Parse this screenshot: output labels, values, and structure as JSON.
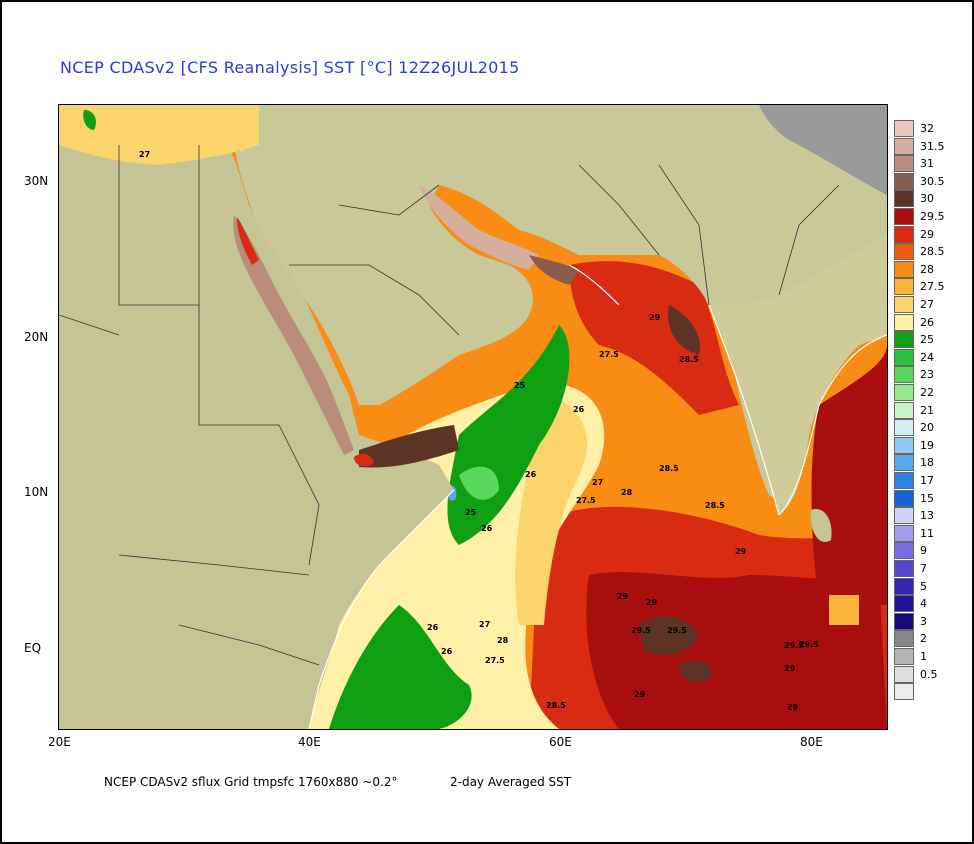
{
  "title": "NCEP CDASv2 [CFS Reanalysis] SST [°C] 12Z26JUL2015",
  "footer": {
    "left": "NCEP CDASv2 sflux Grid tmpsfc 1760x880 ~0.2°",
    "right": "2-day Averaged SST"
  },
  "axes": {
    "x_ticks": [
      "20E",
      "40E",
      "60E",
      "80E"
    ],
    "y_ticks": [
      "30N",
      "20N",
      "10N",
      "EQ"
    ]
  },
  "colorbar": [
    {
      "label": "32",
      "color": "#e8c8bc"
    },
    {
      "label": "31.5",
      "color": "#d6aea0"
    },
    {
      "label": "31",
      "color": "#b98c7c"
    },
    {
      "label": "30.5",
      "color": "#8a5c4c"
    },
    {
      "label": "30",
      "color": "#5c3426"
    },
    {
      "label": "29.5",
      "color": "#a80e0e"
    },
    {
      "label": "29",
      "color": "#d92a12"
    },
    {
      "label": "28.5",
      "color": "#f05a10"
    },
    {
      "label": "28",
      "color": "#f88c14"
    },
    {
      "label": "27.5",
      "color": "#fbb43a"
    },
    {
      "label": "27",
      "color": "#fcd46c"
    },
    {
      "label": "26",
      "color": "#fff0a8"
    },
    {
      "label": "25",
      "color": "#0ea012"
    },
    {
      "label": "24",
      "color": "#2cc23a"
    },
    {
      "label": "23",
      "color": "#5ad85e"
    },
    {
      "label": "22",
      "color": "#96e88c"
    },
    {
      "label": "21",
      "color": "#c8f4c4"
    },
    {
      "label": "20",
      "color": "#cfeefa"
    },
    {
      "label": "19",
      "color": "#90c8f4"
    },
    {
      "label": "18",
      "color": "#5aa8ec"
    },
    {
      "label": "17",
      "color": "#2a84e2"
    },
    {
      "label": "15",
      "color": "#1464d8"
    },
    {
      "label": "13",
      "color": "#d2d2f8"
    },
    {
      "label": "11",
      "color": "#a49af0"
    },
    {
      "label": "9",
      "color": "#7a6ce0"
    },
    {
      "label": "7",
      "color": "#5646cc"
    },
    {
      "label": "5",
      "color": "#3624b4"
    },
    {
      "label": "4",
      "color": "#22129c"
    },
    {
      "label": "3",
      "color": "#14087a"
    },
    {
      "label": "2",
      "color": "#888888"
    },
    {
      "label": "1",
      "color": "#b4b4b4"
    },
    {
      "label": "0.5",
      "color": "#dedede"
    },
    {
      "label": "",
      "color": "#ececec"
    }
  ],
  "contour_labels": [
    "27",
    "29",
    "27.5",
    "28.5",
    "25",
    "26",
    "26",
    "27",
    "27.5",
    "28",
    "28.5",
    "28.5",
    "29",
    "25",
    "26",
    "26",
    "27",
    "28",
    "27.5",
    "26",
    "29",
    "29",
    "29.5",
    "29.5",
    "29",
    "29.5",
    "29.5",
    "29",
    "28.5",
    "29"
  ]
}
